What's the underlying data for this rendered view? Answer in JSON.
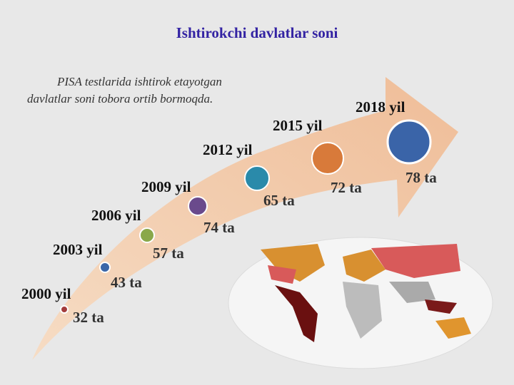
{
  "title": "Ishtirokchi davlatlar soni",
  "subtitle_lines": [
    "PISA testlarida ishtirok etayotgan",
    "davlatlar soni tobora ortib bormoqda."
  ],
  "milestones": [
    {
      "year": "2000 yil",
      "count": "32 ta"
    },
    {
      "year": "2003 yil",
      "count": "43 ta"
    },
    {
      "year": "2006 yil",
      "count": "57 ta"
    },
    {
      "year": "2009 yil",
      "count": "74 ta"
    },
    {
      "year": "2012 yil",
      "count": "65 ta"
    },
    {
      "year": "2015 yil",
      "count": "72 ta"
    },
    {
      "year": "2018 yil",
      "count": "78 ta"
    }
  ]
}
